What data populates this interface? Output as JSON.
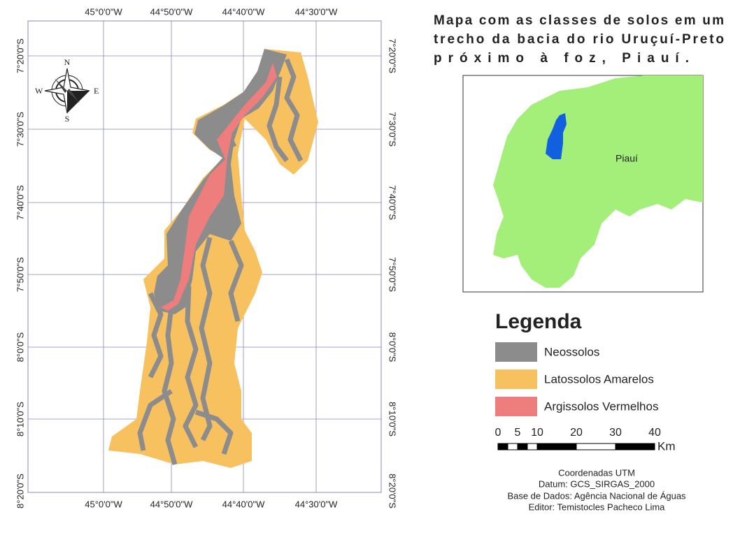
{
  "map": {
    "longitude_labels": [
      "45°0'0\"W",
      "44°50'0\"W",
      "44°40'0\"W",
      "44°30'0\"W"
    ],
    "latitude_labels": [
      "7°20'0\"S",
      "7°30'0\"S",
      "7°40'0\"S",
      "7°50'0\"S",
      "8°0'0\"S",
      "8°10'0\"S",
      "8°20'0\"S"
    ],
    "compass": {
      "north": "N",
      "south": "S",
      "east": "E",
      "west": "W"
    }
  },
  "title_lines": [
    "Mapa com as classes de solos em um",
    "trecho da bacia do rio Uruçuí-Preto",
    "próximo à foz, Piauí."
  ],
  "inset": {
    "label": "Piauí"
  },
  "legend": {
    "title": "Legenda",
    "items": [
      {
        "label": "Neossolos",
        "color": "#8c8c8c"
      },
      {
        "label": "Latossolos Amarelos",
        "color": "#f7c160"
      },
      {
        "label": "Argissolos Vermelhos",
        "color": "#ee7d7d"
      }
    ]
  },
  "scale": {
    "ticks": [
      0,
      5,
      10,
      20,
      30,
      40
    ],
    "unit": "Km"
  },
  "credits": [
    "Coordenadas UTM",
    "Datum: GCS_SIRGAS_2000",
    "Base de Dados: Agência Nacional de Águas",
    "Editor: Temistocles Pacheco Lima"
  ]
}
